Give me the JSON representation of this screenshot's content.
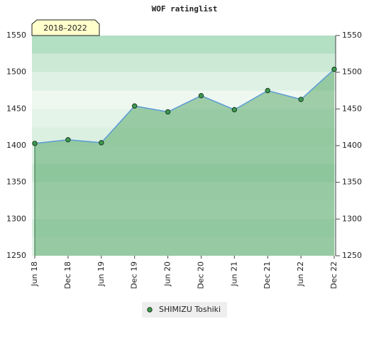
{
  "chart_data": {
    "type": "area",
    "title": "WOF ratinglist",
    "badge": "2018–2022",
    "categories": [
      "Jun 18",
      "Dec 18",
      "Jun 19",
      "Dec 19",
      "Jun 20",
      "Dec 20",
      "Jun 21",
      "Dec 21",
      "Jun 22",
      "Dec 22"
    ],
    "series": [
      {
        "name": "SHIMIZU Toshiki",
        "color": "#3c9a50",
        "values": [
          1403,
          1408,
          1404,
          1454,
          1446,
          1468,
          1449,
          1475,
          1463,
          1504
        ]
      }
    ],
    "ylim": [
      1250,
      1550
    ],
    "yticks": [
      1250,
      1300,
      1350,
      1400,
      1450,
      1500,
      1550
    ],
    "grid": false
  }
}
